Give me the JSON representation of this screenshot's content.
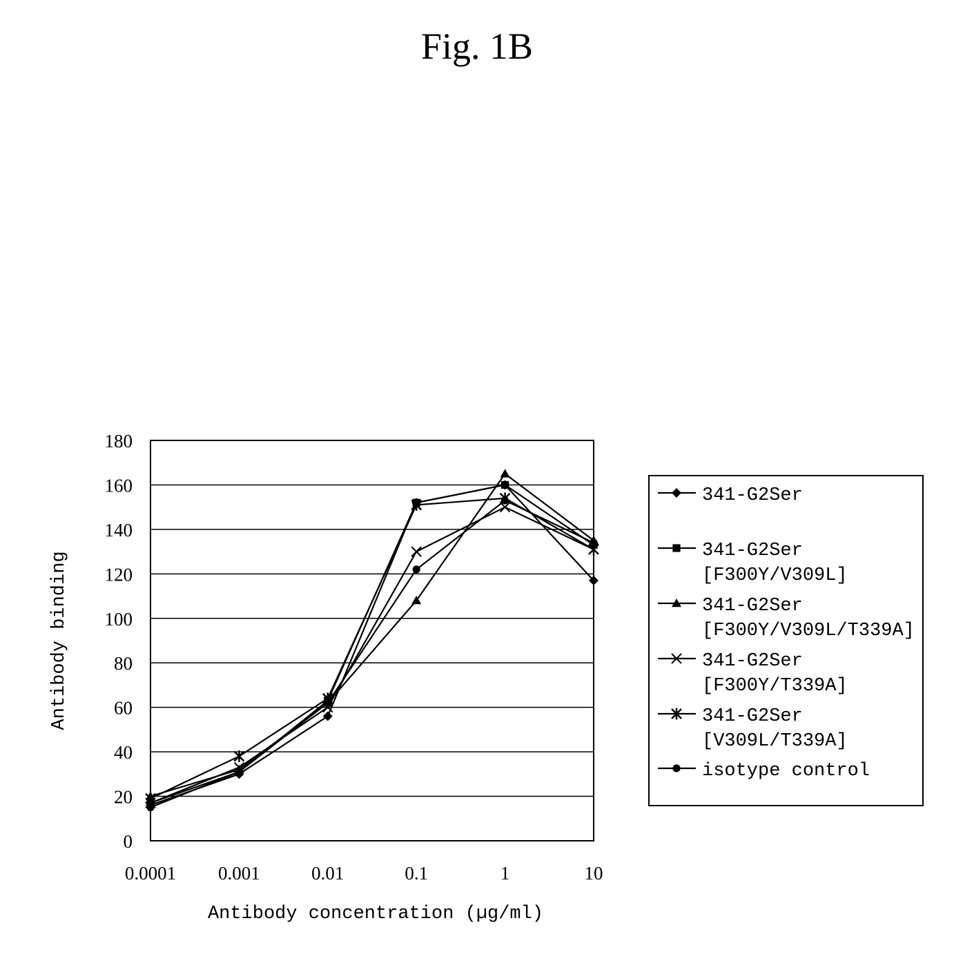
{
  "figure": {
    "title": "Fig. 1B"
  },
  "chart_data": {
    "type": "line",
    "title": "",
    "xlabel": "Antibody concentration (µg/ml)",
    "ylabel": "Antibody binding",
    "x": [
      "0.0001",
      "0.001",
      "0.01",
      "0.1",
      "1",
      "10"
    ],
    "x_values": [
      0.0001,
      0.001,
      0.01,
      0.1,
      1,
      10
    ],
    "x_scale": "log",
    "ylim": [
      0,
      180
    ],
    "yticks": [
      0,
      20,
      40,
      60,
      80,
      100,
      120,
      140,
      160,
      180
    ],
    "grid": "horizontal",
    "legend_position": "right",
    "series": [
      {
        "name": "341-G2Ser",
        "name_lines": [
          "341-G2Ser"
        ],
        "marker": "diamond",
        "values": [
          16,
          30,
          56,
          152,
          160,
          117
        ]
      },
      {
        "name": "341-G2Ser [F300Y/V309L]",
        "name_lines": [
          "341-G2Ser",
          "[F300Y/V309L]"
        ],
        "marker": "square",
        "values": [
          17,
          31,
          63,
          152,
          160,
          133
        ]
      },
      {
        "name": "341-G2Ser [F300Y/V309L/T339A]",
        "name_lines": [
          "341-G2Ser",
          "[F300Y/V309L/T339A]"
        ],
        "marker": "triangle",
        "values": [
          20,
          32,
          62,
          108,
          165,
          135
        ]
      },
      {
        "name": "341-G2Ser [F300Y/T339A]",
        "name_lines": [
          "341-G2Ser",
          "[F300Y/T339A]"
        ],
        "marker": "x",
        "values": [
          17,
          33,
          60,
          130,
          150,
          131
        ]
      },
      {
        "name": "341-G2Ser [V309L/T339A]",
        "name_lines": [
          "341-G2Ser",
          "[V309L/T339A]"
        ],
        "marker": "star",
        "values": [
          19,
          38,
          64,
          151,
          154,
          131
        ]
      },
      {
        "name": "isotype control",
        "name_lines": [
          "isotype control"
        ],
        "marker": "circle",
        "values": [
          15,
          31,
          62,
          122,
          153,
          134
        ]
      }
    ]
  }
}
